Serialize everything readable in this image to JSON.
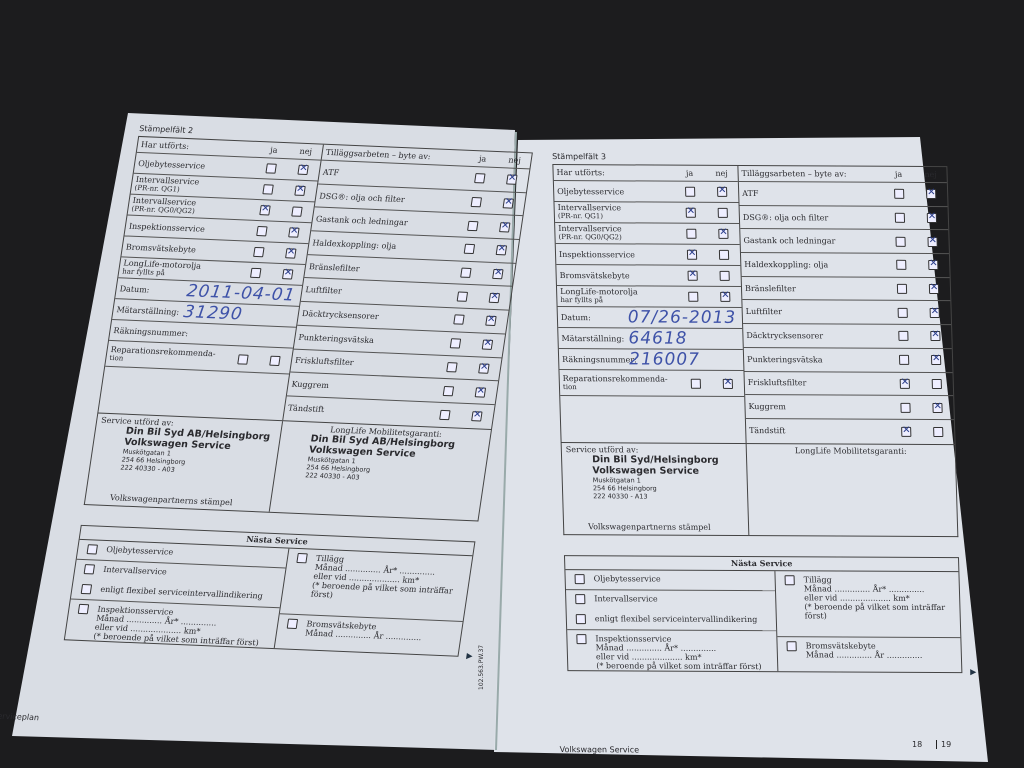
{
  "colors": {
    "ink": "#3e52a8",
    "paper": "#dde1e8",
    "background": "#1c1c1e"
  },
  "headers": {
    "done": "Har utförts:",
    "yes": "ja",
    "no": "nej",
    "extras": "Tilläggsarbeten – byte av:"
  },
  "service_labels": [
    "Oljebytesservice",
    "Intervallservice",
    "Intervallservice",
    "Inspektionsservice",
    "Bromsvätskebyte",
    "LongLife-motorolja",
    "Reparationsrekommenda-"
  ],
  "service_sublabels": [
    "",
    "(PR-nr. QG1)",
    "(PR-nr. QG0/QG2)",
    "",
    "",
    "har fyllts på",
    "tion"
  ],
  "field_labels": {
    "date": "Datum:",
    "odometer": "Mätarställning:",
    "invoice": "Räkningsnummer:"
  },
  "extra_labels": [
    "ATF",
    "DSG®: olja och filter",
    "Gastank och ledningar",
    "Haldexkoppling: olja",
    "Bränslefilter",
    "Luftfilter",
    "Däcktrycksensorer",
    "Punkteringsvätska",
    "Friskluftsfilter",
    "Kuggrem",
    "Tändstift"
  ],
  "stamp": {
    "performed_by": "Service utförd av:",
    "partner_stamp": "Volkswagenpartnerns stämpel",
    "longlife": "LongLife Mobilitetsgaranti:"
  },
  "next_service": {
    "title": "Nästa Service",
    "oil": "Oljebytesservice",
    "interval": "Intervallservice",
    "flexible": "enligt flexibel serviceintervallindikering",
    "inspection": "Inspektionsservice",
    "month_year": "Månad .............. År* ..............",
    "or_km": "eller vid .................... km*",
    "note": "(* beroende på vilket som inträffar först)",
    "extra": "Tillägg",
    "brake": "Bromsvätskebyte",
    "brake_month": "Månad .............. År .............."
  },
  "pages": [
    {
      "stamp_field": "Stämpelfält 2",
      "service_checks": [
        "nej",
        "nej",
        "ja",
        "nej",
        "nej",
        "nej",
        null
      ],
      "date": "2011-04-01",
      "odometer": "31290",
      "invoice": "",
      "extra_checks": [
        "nej",
        "nej",
        "nej",
        "nej",
        "nej",
        "nej",
        "nej",
        "nej",
        "nej",
        "nej",
        "nej"
      ],
      "dealer": {
        "name": "Din Bil Syd AB/Helsingborg",
        "brand": "Volkswagen Service",
        "street": "Muskötgatan 1",
        "city": "254 66 Helsingborg",
        "code": "222 40330 - A03"
      },
      "longlife_dealer": {
        "name": "Din Bil Syd AB/Helsingborg",
        "brand": "Volkswagen Service",
        "street": "Muskötgatan 1",
        "city": "254 66 Helsingborg",
        "code": "222 40330 - A03"
      },
      "footer": "Serviceplan",
      "page_number": "18"
    },
    {
      "stamp_field": "Stämpelfält 3",
      "service_checks": [
        "nej",
        "ja",
        "nej",
        "ja",
        "ja",
        "nej",
        "nej"
      ],
      "date": "07/26-2013",
      "odometer": "64618",
      "invoice": "216007",
      "extra_checks": [
        "nej",
        "nej",
        "nej",
        "nej",
        "nej",
        "nej",
        "nej",
        "nej",
        "ja",
        "nej",
        "ja"
      ],
      "dealer": {
        "name": "Din Bil Syd/Helsingborg",
        "brand": "Volkswagen Service",
        "street": "Muskötgatan 1",
        "city": "254 66 Helsingborg",
        "code": "222 40330 - A13"
      },
      "longlife_dealer": null,
      "footer": "Volkswagen Service",
      "page_number": "19"
    }
  ],
  "spine_code": "102.563.PW.37"
}
